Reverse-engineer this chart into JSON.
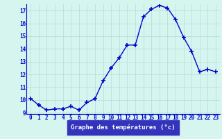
{
  "hours": [
    0,
    1,
    2,
    3,
    4,
    5,
    6,
    7,
    8,
    9,
    10,
    11,
    12,
    13,
    14,
    15,
    16,
    17,
    18,
    19,
    20,
    21,
    22,
    23
  ],
  "temps": [
    10.1,
    9.6,
    9.2,
    9.3,
    9.3,
    9.5,
    9.2,
    9.8,
    10.1,
    11.5,
    12.5,
    13.3,
    14.3,
    14.3,
    16.5,
    17.1,
    17.4,
    17.2,
    16.3,
    14.9,
    13.8,
    12.2,
    12.4,
    12.2
  ],
  "line_color": "#0000cc",
  "marker": "+",
  "marker_size": 4,
  "line_width": 1.0,
  "bg_color": "#d6f5ef",
  "grid_color": "#b0ddd8",
  "xlabel": "Graphe des températures (°c)",
  "ylim": [
    9,
    17.5
  ],
  "yticks": [
    9,
    10,
    11,
    12,
    13,
    14,
    15,
    16,
    17
  ],
  "xlim": [
    -0.5,
    23.5
  ],
  "tick_color": "#0000cc",
  "tick_fontsize": 5.5,
  "xlabel_fontsize": 6.5,
  "label_bg": "#3333bb"
}
